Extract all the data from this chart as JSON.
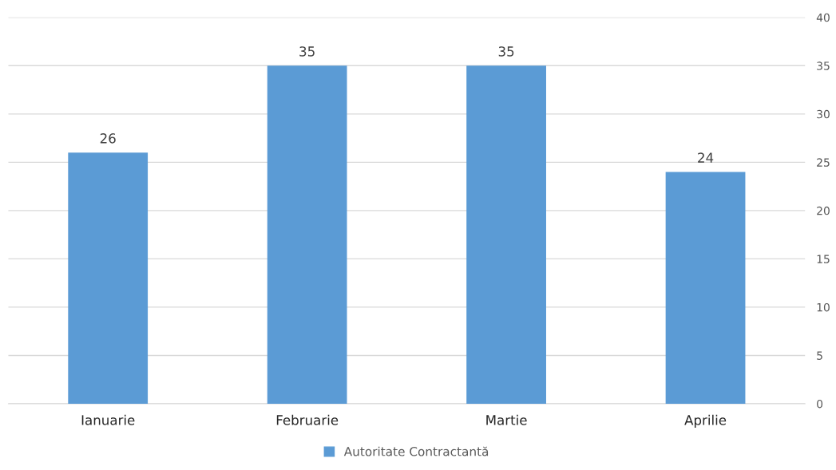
{
  "chart_data": {
    "type": "bar",
    "categories": [
      "Ianuarie",
      "Februarie",
      "Martie",
      "Aprilie"
    ],
    "series": [
      {
        "name": "Autoritate Contractantă",
        "color": "#5b9bd5",
        "values": [
          26,
          35,
          35,
          24
        ]
      }
    ],
    "ylim": [
      0,
      40
    ],
    "yticks": [
      0,
      5,
      10,
      15,
      20,
      25,
      30,
      35,
      40
    ],
    "grid": "y",
    "legend": "bottom",
    "data_labels": true
  }
}
